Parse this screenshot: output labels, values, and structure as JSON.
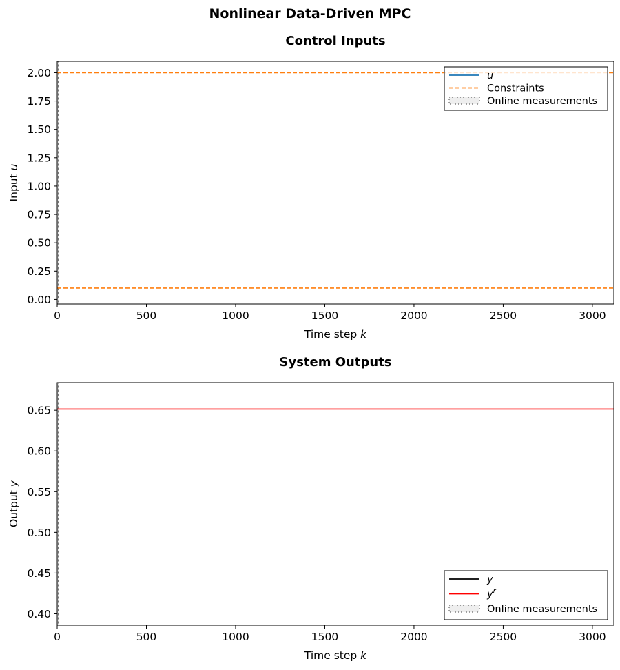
{
  "figure": {
    "suptitle": "Nonlinear Data-Driven MPC"
  },
  "chart_data": [
    {
      "type": "line",
      "title": "Control Inputs",
      "xlabel": "Time step",
      "xlabel_var": "k",
      "ylabel": "Input",
      "ylabel_var": "u",
      "xlim": [
        0,
        3120
      ],
      "ylim": [
        -0.04,
        2.1
      ],
      "xticks": [
        0,
        500,
        1000,
        1500,
        2000,
        2500,
        3000
      ],
      "yticks": [
        0.0,
        0.25,
        0.5,
        0.75,
        1.0,
        1.25,
        1.5,
        1.75,
        2.0
      ],
      "ytick_labels": [
        "0.00",
        "0.25",
        "0.50",
        "0.75",
        "1.00",
        "1.25",
        "1.50",
        "1.75",
        "2.00"
      ],
      "series": [
        {
          "name": "u",
          "role": "input",
          "color": "#1f77b4",
          "style": "solid",
          "x": [],
          "y": []
        },
        {
          "name": "Constraints",
          "role": "constraint",
          "color": "#ff7f0e",
          "style": "dashed",
          "levels": [
            2.0,
            0.1
          ]
        }
      ],
      "shaded_region": {
        "name": "Online measurements",
        "x": [
          0,
          3
        ]
      },
      "legend": {
        "placement": "top-right",
        "entries": [
          {
            "label": "u",
            "kind": "line",
            "color": "#1f77b4",
            "dash": "none",
            "italic": true
          },
          {
            "label": "Constraints",
            "kind": "line",
            "color": "#ff7f0e",
            "dash": "dashed",
            "italic": false
          },
          {
            "label": "Online measurements",
            "kind": "patch",
            "color": "#d9d9d9",
            "dash": "none",
            "italic": false
          }
        ]
      },
      "grid": false
    },
    {
      "type": "line",
      "title": "System Outputs",
      "xlabel": "Time step",
      "xlabel_var": "k",
      "ylabel": "Output",
      "ylabel_var": "y",
      "xlim": [
        0,
        3120
      ],
      "ylim": [
        0.386,
        0.684
      ],
      "xticks": [
        0,
        500,
        1000,
        1500,
        2000,
        2500,
        3000
      ],
      "yticks": [
        0.4,
        0.45,
        0.5,
        0.55,
        0.6,
        0.65
      ],
      "ytick_labels": [
        "0.40",
        "0.45",
        "0.50",
        "0.55",
        "0.60",
        "0.65"
      ],
      "series": [
        {
          "name": "y",
          "role": "output",
          "color": "#000000",
          "style": "solid",
          "x": [],
          "y": []
        },
        {
          "name": "y^r",
          "role": "reference",
          "color": "#ff0000",
          "style": "solid",
          "levels": [
            0.6515
          ]
        }
      ],
      "shaded_region": {
        "name": "Online measurements",
        "x": [
          0,
          3
        ]
      },
      "legend": {
        "placement": "bottom-right",
        "entries": [
          {
            "label": "y",
            "kind": "line",
            "color": "#000000",
            "dash": "none",
            "italic": true
          },
          {
            "label": "y",
            "sup": "r",
            "kind": "line",
            "color": "#ff0000",
            "dash": "none",
            "italic": true
          },
          {
            "label": "Online measurements",
            "kind": "patch",
            "color": "#d9d9d9",
            "dash": "none",
            "italic": false
          }
        ]
      },
      "grid": false
    }
  ]
}
